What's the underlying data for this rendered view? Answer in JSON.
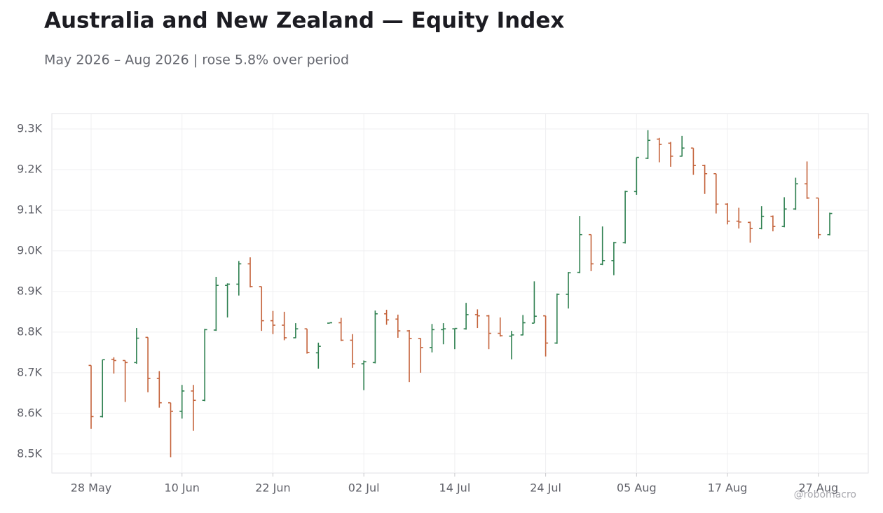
{
  "chart_data": {
    "type": "ohlc",
    "title": "Australia and New Zealand — Equity Index",
    "subtitle": "May 2026 – Aug 2026 | rose 5.8% over period",
    "watermark": "@robomacro",
    "up_color": "#2e8050",
    "down_color": "#c4623a",
    "grid": true,
    "categories": [
      "28 May",
      null,
      null,
      null,
      null,
      null,
      null,
      null,
      "10 Jun",
      null,
      null,
      null,
      null,
      null,
      null,
      null,
      "22 Jun",
      null,
      null,
      null,
      null,
      null,
      null,
      null,
      "02 Jul",
      null,
      null,
      null,
      null,
      null,
      null,
      null,
      "14 Jul",
      null,
      null,
      null,
      null,
      null,
      null,
      null,
      "24 Jul",
      null,
      null,
      null,
      null,
      null,
      null,
      null,
      "05 Aug",
      null,
      null,
      null,
      null,
      null,
      null,
      null,
      "17 Aug",
      null,
      null,
      null,
      null,
      null,
      null,
      null,
      "27 Aug",
      null
    ],
    "open": [
      8718,
      8592,
      8733,
      8730,
      8725,
      8787,
      8686,
      8626,
      8605,
      8655,
      8632,
      8805,
      8915,
      8918,
      8968,
      8912,
      8828,
      8817,
      8786,
      8808,
      8749,
      8822,
      8823,
      8780,
      8722,
      8725,
      8845,
      8832,
      8803,
      8784,
      8762,
      8806,
      8808,
      8808,
      8843,
      8840,
      8797,
      8790,
      8793,
      8822,
      8840,
      8773,
      8893,
      8947,
      9040,
      8967,
      8976,
      9020,
      9146,
      9228,
      9275,
      9265,
      9233,
      9253,
      9210,
      9190,
      9115,
      9073,
      9070,
      9055,
      9085,
      9060,
      9103,
      9165,
      9130,
      9040
    ],
    "high": [
      8718,
      8732,
      8738,
      8730,
      8810,
      8787,
      8704,
      8626,
      8670,
      8670,
      8808,
      8936,
      8920,
      8975,
      8984,
      8912,
      8852,
      8850,
      8822,
      8808,
      8774,
      8823,
      8835,
      8795,
      8730,
      8853,
      8855,
      8843,
      8805,
      8785,
      8820,
      8822,
      8809,
      8872,
      8856,
      8842,
      8836,
      8803,
      8842,
      8925,
      8840,
      8895,
      8948,
      9086,
      9040,
      9060,
      9022,
      9148,
      9230,
      9297,
      9278,
      9268,
      9283,
      9253,
      9212,
      9190,
      9117,
      9106,
      9072,
      9110,
      9087,
      9132,
      9180,
      9220,
      9130,
      9094
    ],
    "low": [
      8562,
      8590,
      8698,
      8628,
      8722,
      8652,
      8614,
      8492,
      8587,
      8557,
      8630,
      8803,
      8836,
      8890,
      8910,
      8803,
      8795,
      8780,
      8785,
      8747,
      8710,
      8822,
      8778,
      8712,
      8657,
      8723,
      8818,
      8786,
      8677,
      8700,
      8750,
      8770,
      8758,
      8806,
      8810,
      8758,
      8789,
      8733,
      8792,
      8822,
      8740,
      8771,
      8858,
      8945,
      8950,
      8965,
      8940,
      9018,
      9138,
      9226,
      9218,
      9207,
      9232,
      9187,
      9140,
      9092,
      9065,
      9055,
      9020,
      9053,
      9048,
      9058,
      9101,
      9128,
      9030,
      9038
    ],
    "close": [
      8592,
      8732,
      8730,
      8725,
      8785,
      8686,
      8626,
      8605,
      8655,
      8632,
      8806,
      8915,
      8918,
      8968,
      8912,
      8828,
      8817,
      8786,
      8808,
      8750,
      8765,
      8823,
      8780,
      8722,
      8727,
      8845,
      8830,
      8803,
      8784,
      8762,
      8806,
      8808,
      8809,
      8843,
      8840,
      8797,
      8791,
      8793,
      8823,
      8839,
      8773,
      8893,
      8946,
      9040,
      8968,
      8976,
      9020,
      9146,
      9230,
      9272,
      9262,
      9233,
      9253,
      9210,
      9190,
      9115,
      9073,
      9071,
      9055,
      9085,
      9060,
      9103,
      9165,
      9130,
      9040,
      9092
    ],
    "ylim": [
      8453,
      9338
    ],
    "yticks": [
      {
        "value": 8500,
        "label": "8.5K"
      },
      {
        "value": 8600,
        "label": "8.6K"
      },
      {
        "value": 8700,
        "label": "8.7K"
      },
      {
        "value": 8800,
        "label": "8.8K"
      },
      {
        "value": 8900,
        "label": "8.9K"
      },
      {
        "value": 9000,
        "label": "9.0K"
      },
      {
        "value": 9100,
        "label": "9.1K"
      },
      {
        "value": 9200,
        "label": "9.2K"
      },
      {
        "value": 9300,
        "label": "9.3K"
      }
    ]
  }
}
